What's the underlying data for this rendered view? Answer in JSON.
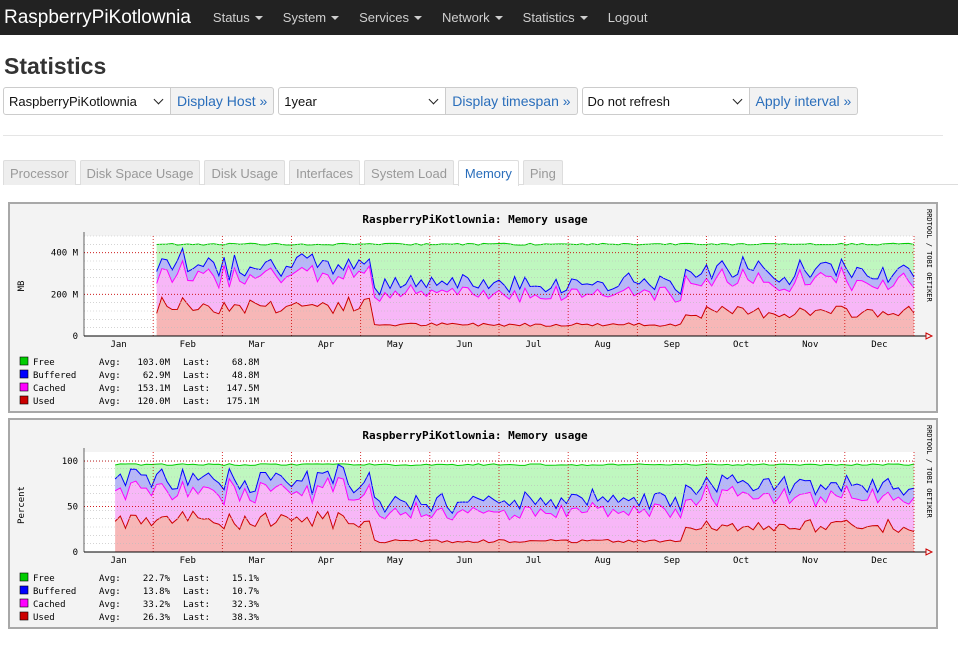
{
  "navbar": {
    "brand": "RaspberryPiKotlownia",
    "items": [
      {
        "label": "Status",
        "dropdown": true
      },
      {
        "label": "System",
        "dropdown": true
      },
      {
        "label": "Services",
        "dropdown": true
      },
      {
        "label": "Network",
        "dropdown": true
      },
      {
        "label": "Statistics",
        "dropdown": true
      },
      {
        "label": "Logout",
        "dropdown": false
      }
    ]
  },
  "page": {
    "title": "Statistics"
  },
  "controls": {
    "host_value": "RaspberryPiKotlownia",
    "host_button": "Display Host »",
    "timespan_value": "1year",
    "timespan_button": "Display timespan »",
    "refresh_value": "Do not refresh",
    "refresh_button": "Apply interval »"
  },
  "tabs": [
    {
      "label": "Processor",
      "active": false
    },
    {
      "label": "Disk Space Usage",
      "active": false
    },
    {
      "label": "Disk Usage",
      "active": false
    },
    {
      "label": "Interfaces",
      "active": false
    },
    {
      "label": "System Load",
      "active": false
    },
    {
      "label": "Memory",
      "active": true
    },
    {
      "label": "Ping",
      "active": false
    }
  ],
  "colors": {
    "free": "#bff7bf",
    "free_line": "#00cc00",
    "buffered": "#b7b7f7",
    "buffered_line": "#0000ff",
    "cached": "#f7b7f7",
    "cached_line": "#ff00ff",
    "used": "#f7b7b7",
    "used_line": "#cc0000",
    "grid_major": "#cc0000",
    "accent": "#2a6ebb"
  },
  "graphs": [
    {
      "title": "RaspberryPiKotlownia: Memory usage",
      "side_label": "RRDTOOL / TOBI OETIKER",
      "ylabel": "MB",
      "y_ticks": [
        {
          "label": "400 M",
          "value": 400
        },
        {
          "label": "200 M",
          "value": 200
        },
        {
          "label": "0",
          "value": 0
        }
      ],
      "ymax": 480,
      "months": [
        "Jan",
        "Feb",
        "Mar",
        "Apr",
        "May",
        "Jun",
        "Jul",
        "Aug",
        "Sep",
        "Oct",
        "Nov",
        "Dec"
      ],
      "legend": [
        {
          "name": "Free",
          "avg": "103.0M",
          "last": "68.8M",
          "color": "#00cc00"
        },
        {
          "name": "Buffered",
          "avg": "62.9M",
          "last": "48.8M",
          "color": "#0000ff"
        },
        {
          "name": "Cached",
          "avg": "153.1M",
          "last": "147.5M",
          "color": "#ff00ff"
        },
        {
          "name": "Used",
          "avg": "120.0M",
          "last": "175.1M",
          "color": "#cc0000"
        }
      ],
      "avg_label": "Avg:",
      "last_label": "Last:"
    },
    {
      "title": "RaspberryPiKotlownia: Memory usage",
      "side_label": "RRDTOOL / TOBI OETIKER",
      "ylabel": "Percent",
      "y_ticks": [
        {
          "label": "100",
          "value": 100
        },
        {
          "label": "50",
          "value": 50
        },
        {
          "label": "0",
          "value": 0
        }
      ],
      "ymax": 110,
      "months": [
        "Jan",
        "Feb",
        "Mar",
        "Apr",
        "May",
        "Jun",
        "Jul",
        "Aug",
        "Sep",
        "Oct",
        "Nov",
        "Dec"
      ],
      "legend": [
        {
          "name": "Free",
          "avg": "22.7%",
          "last": "15.1%",
          "color": "#00cc00"
        },
        {
          "name": "Buffered",
          "avg": "13.8%",
          "last": "10.7%",
          "color": "#0000ff"
        },
        {
          "name": "Cached",
          "avg": "33.2%",
          "last": "32.3%",
          "color": "#ff00ff"
        },
        {
          "name": "Used",
          "avg": "26.3%",
          "last": "38.3%",
          "color": "#cc0000"
        }
      ],
      "avg_label": "Avg:",
      "last_label": "Last:"
    }
  ]
}
